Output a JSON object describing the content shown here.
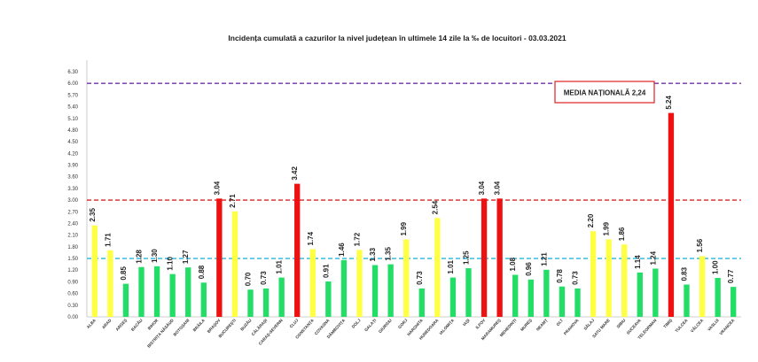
{
  "chart_data": {
    "type": "bar",
    "title": "Incidența cumulată a cazurilor la nivel județean în ultimele 14 zile la ‰ de locuitori - 03.03.2021",
    "ylim": [
      0,
      6.3
    ],
    "yticks": [
      "0.00",
      "0.30",
      "0.60",
      "0.90",
      "1.20",
      "1.50",
      "1.80",
      "2.10",
      "2.40",
      "2.70",
      "3.00",
      "3.30",
      "3.60",
      "3.90",
      "4.20",
      "4.50",
      "4.80",
      "5.10",
      "5.40",
      "5.70",
      "6.00",
      "6.30"
    ],
    "categories": [
      "ALBA",
      "ARAD",
      "ARGEȘ",
      "BACĂU",
      "BIHOR",
      "BISTRIȚA NĂSĂUD",
      "BOTOȘANI",
      "BRĂILA",
      "BRAȘOV",
      "BUCUREȘTI",
      "BUZĂU",
      "CĂLĂRAȘI",
      "CARAȘ-SEVERIN",
      "CLUJ",
      "CONSTANȚA",
      "COVASNA",
      "DÂMBOVIȚA",
      "DOLJ",
      "GALAȚI",
      "GIURGIU",
      "GORJ",
      "HARGHITA",
      "HUNEDOARA",
      "IALOMIȚA",
      "IAȘI",
      "ILFOV",
      "MARAMUREȘ",
      "MEHEDINȚI",
      "MUREȘ",
      "NEAMȚ",
      "OLT",
      "PRAHOVA",
      "SĂLAJ",
      "SATU MARE",
      "SIBIU",
      "SUCEAVA",
      "TELEORMAN",
      "TIMIȘ",
      "TULCEA",
      "VÂLCEA",
      "VASLUI",
      "VRANCEA"
    ],
    "values": [
      2.35,
      1.71,
      0.85,
      1.28,
      1.3,
      1.1,
      1.27,
      0.88,
      3.04,
      2.71,
      0.7,
      0.73,
      1.01,
      3.42,
      1.74,
      0.91,
      1.46,
      1.72,
      1.33,
      1.35,
      1.99,
      0.73,
      2.54,
      1.01,
      1.25,
      3.04,
      3.04,
      1.08,
      0.96,
      1.21,
      0.78,
      0.73,
      2.2,
      1.99,
      1.86,
      1.14,
      1.24,
      5.24,
      0.83,
      1.56,
      1.0,
      0.77
    ],
    "value_labels": [
      "2.35",
      "1.71",
      "0.85",
      "1.28",
      "1.30",
      "1.10",
      "1.27",
      "0.88",
      "3.04",
      "2.71",
      "0.70",
      "0.73",
      "1.01",
      "3.42",
      "1.74",
      "0.91",
      "1.46",
      "1.72",
      "1.33",
      "1.35",
      "1.99",
      "0.73",
      "2.54",
      "1.01",
      "1.25",
      "3.04",
      "3.04",
      "1.08",
      "0.96",
      "1.21",
      "0.78",
      "0.73",
      "2.20",
      "1.99",
      "1.86",
      "1.14",
      "1.24",
      "5.24",
      "0.83",
      "1.56",
      "1.00",
      "0.77"
    ],
    "reference_lines": [
      {
        "value": 6.0,
        "color": "#7030a0"
      },
      {
        "value": 3.0,
        "color": "#e02020"
      },
      {
        "value": 1.5,
        "color": "#20b8d8"
      }
    ],
    "annotation": "MEDIA NAȚIONALĂ 2,24",
    "colors": {
      "low": "#22dd66",
      "mid": "#ffff44",
      "high": "#ee1111",
      "annotation_border": "#e02020"
    },
    "grid": false,
    "legend": "none"
  }
}
